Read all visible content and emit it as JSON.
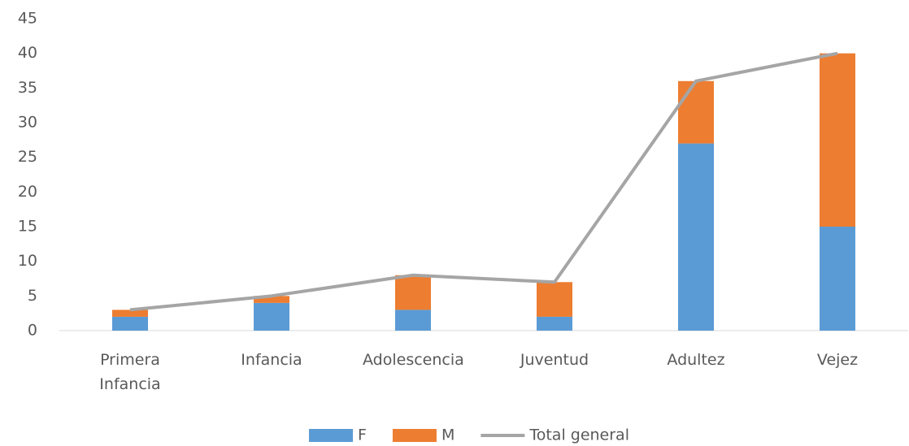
{
  "chart_data": {
    "type": "bar",
    "stacked": true,
    "categories": [
      "Primera Infancia",
      "Infancia",
      "Adolescencia",
      "Juventud",
      "Adultez",
      "Vejez"
    ],
    "series": [
      {
        "name": "F",
        "type": "bar",
        "color": "#5b9bd5",
        "values": [
          2,
          4,
          3,
          2,
          27,
          15
        ]
      },
      {
        "name": "M",
        "type": "bar",
        "color": "#ed7d31",
        "values": [
          1,
          1,
          5,
          5,
          9,
          25
        ]
      },
      {
        "name": "Total general",
        "type": "line",
        "color": "#a5a5a5",
        "values": [
          3,
          5,
          8,
          7,
          36,
          40
        ]
      }
    ],
    "ylim": [
      0,
      45
    ],
    "yticks": [
      0,
      5,
      10,
      15,
      20,
      25,
      30,
      35,
      40,
      45
    ],
    "grid": false,
    "legend": "bottom"
  }
}
